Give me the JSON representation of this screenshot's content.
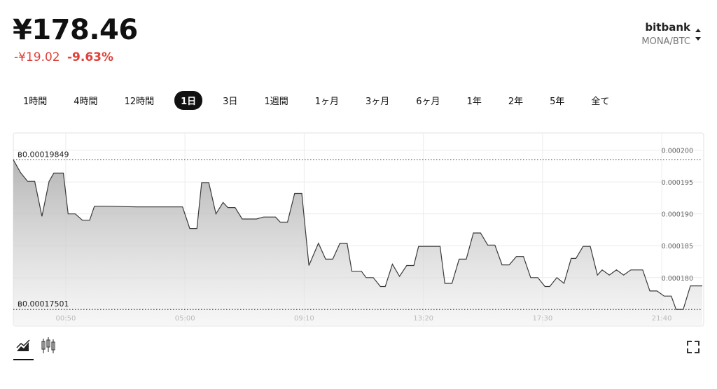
{
  "header": {
    "price": "¥178.46",
    "change": "-¥19.02",
    "change_percent": "-9.63%",
    "exchange": "bitbank",
    "pair": "MONA/BTC"
  },
  "tabs": [
    "1時間",
    "4時間",
    "12時間",
    "1日",
    "3日",
    "1週間",
    "1ヶ月",
    "3ヶ月",
    "6ヶ月",
    "1年",
    "2年",
    "5年",
    "全て"
  ],
  "selected_tab": 3,
  "chart_data": {
    "type": "area",
    "color": "#3a3a3a",
    "x": [
      "23:00",
      "23:15",
      "23:30",
      "23:45",
      "00:00",
      "00:15",
      "00:25",
      "00:45",
      "00:55",
      "01:10",
      "01:25",
      "01:40",
      "01:50",
      "02:15",
      "03:20",
      "04:55",
      "05:10",
      "05:25",
      "05:35",
      "05:50",
      "06:05",
      "06:20",
      "06:30",
      "06:45",
      "07:00",
      "07:30",
      "07:45",
      "08:10",
      "08:20",
      "08:35",
      "08:50",
      "09:05",
      "09:20",
      "09:40",
      "09:55",
      "10:10",
      "10:25",
      "10:40",
      "10:50",
      "11:10",
      "11:20",
      "11:35",
      "11:50",
      "12:00",
      "12:15",
      "12:30",
      "12:45",
      "13:00",
      "13:10",
      "13:55",
      "14:05",
      "14:20",
      "14:35",
      "14:50",
      "15:05",
      "15:20",
      "15:35",
      "15:50",
      "16:05",
      "16:20",
      "16:35",
      "16:50",
      "17:05",
      "17:20",
      "17:35",
      "17:45",
      "18:00",
      "18:15",
      "18:30",
      "18:40",
      "18:55",
      "19:10",
      "19:25",
      "19:35",
      "19:50",
      "20:05",
      "20:20",
      "20:35",
      "21:00",
      "21:15",
      "21:30",
      "21:45",
      "22:00",
      "22:10",
      "22:25",
      "22:40",
      "23:05"
    ],
    "values": [
      0.00019849,
      0.0001965,
      0.0001951,
      0.0001951,
      0.0001896,
      0.0001951,
      0.0001964,
      0.0001964,
      0.00019,
      0.00019,
      0.000189,
      0.000189,
      0.0001912,
      0.0001912,
      0.0001911,
      0.0001911,
      0.0001877,
      0.0001877,
      0.0001949,
      0.0001949,
      0.00019,
      0.0001918,
      0.000191,
      0.000191,
      0.0001892,
      0.0001892,
      0.0001895,
      0.0001895,
      0.0001887,
      0.0001887,
      0.0001932,
      0.0001932,
      0.0001819,
      0.0001854,
      0.0001829,
      0.0001829,
      0.0001854,
      0.0001854,
      0.000181,
      0.000181,
      0.00018,
      0.00018,
      0.0001786,
      0.0001786,
      0.0001821,
      0.0001802,
      0.0001819,
      0.0001819,
      0.0001849,
      0.0001849,
      0.0001791,
      0.0001791,
      0.0001829,
      0.0001829,
      0.000187,
      0.000187,
      0.0001851,
      0.0001851,
      0.000182,
      0.000182,
      0.0001833,
      0.0001833,
      0.00018,
      0.00018,
      0.0001786,
      0.0001786,
      0.00018,
      0.0001791,
      0.000183,
      0.000183,
      0.0001849,
      0.0001849,
      0.0001804,
      0.0001812,
      0.0001804,
      0.0001812,
      0.0001804,
      0.0001812,
      0.0001812,
      0.0001779,
      0.0001779,
      0.0001771,
      0.0001771,
      0.00017501,
      0.00017501,
      0.0001787,
      0.0001787
    ],
    "xticks": [
      "00:50",
      "05:00",
      "09:10",
      "13:20",
      "17:30",
      "21:40"
    ],
    "ylim": [
      0.0001724,
      0.0002027
    ],
    "yticks": [
      {
        "value": 0.00018,
        "label": "0.000180"
      },
      0.000185,
      {
        "value": 0.00019,
        "label": "0.000190"
      },
      0.000195,
      {
        "value": 0.0002,
        "label": "0.000200"
      }
    ],
    "annotations": [
      {
        "value": 0.00019849,
        "label": "฿0.00019849"
      },
      {
        "value": 0.00017501,
        "label": "฿0.00017501"
      }
    ],
    "grid": true
  }
}
